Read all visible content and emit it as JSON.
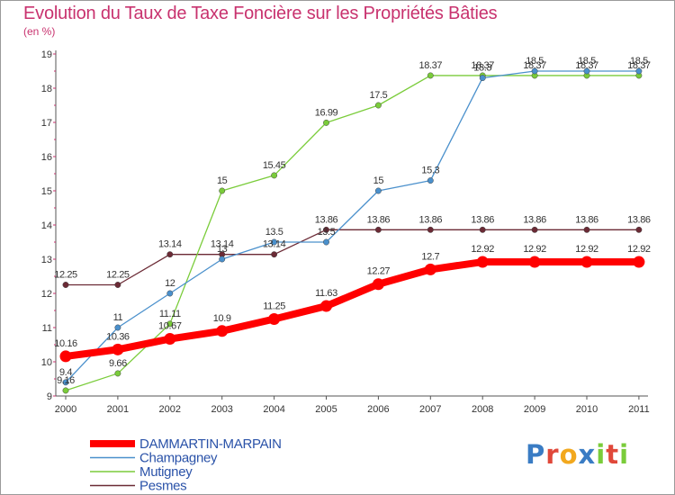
{
  "chart_data": {
    "type": "line",
    "title": "Evolution du Taux de Taxe Foncière sur les Propriétés Bâties",
    "ylabel": "(en %)",
    "xlabel": "",
    "categories": [
      "2000",
      "2001",
      "2002",
      "2003",
      "2004",
      "2005",
      "2006",
      "2007",
      "2008",
      "2009",
      "2010",
      "2011"
    ],
    "ylim": [
      9,
      19
    ],
    "yticks": [
      "9",
      "10",
      "11",
      "12",
      "13",
      "14",
      "15",
      "16",
      "17",
      "18",
      "19"
    ],
    "grid": false,
    "legend_position": "bottom-left",
    "series": [
      {
        "name": "Pesmes",
        "color": "#6b2a35",
        "values": [
          12.25,
          12.25,
          13.14,
          13.14,
          13.14,
          13.86,
          13.86,
          13.86,
          13.86,
          13.86,
          13.86,
          13.86
        ],
        "labels": [
          "12.25",
          "12.25",
          "13.14",
          "13.14",
          "13.14",
          "13.86",
          "13.86",
          "13.86",
          "13.86",
          "13.86",
          "13.86",
          "13.86"
        ]
      },
      {
        "name": "Mutigney",
        "color": "#7acc3a",
        "values": [
          9.16,
          9.66,
          11.11,
          15,
          15.45,
          16.99,
          17.5,
          18.37,
          18.37,
          18.37,
          18.37,
          18.37
        ],
        "labels": [
          "9.16",
          "9.66",
          "11.11",
          "15",
          "15.45",
          "16.99",
          "17.5",
          "18.37",
          "18.37",
          "18.37",
          "18.37",
          "18.37"
        ]
      },
      {
        "name": "Champagney",
        "color": "#4a90cc",
        "values": [
          9.4,
          11,
          12,
          13,
          13.5,
          13.5,
          15,
          15.3,
          18.3,
          18.5,
          18.5,
          18.5
        ],
        "labels": [
          "9.4",
          "11",
          "12",
          "13",
          "13.5",
          "13.5",
          "15",
          "15.3",
          "18.3",
          "18.5",
          "18.5",
          "18.5"
        ]
      },
      {
        "name": "DAMMARTIN-MARPAIN",
        "color": "#ff0000",
        "values": [
          10.16,
          10.36,
          10.67,
          10.9,
          11.25,
          11.63,
          12.27,
          12.7,
          12.92,
          12.92,
          12.92,
          12.92
        ],
        "labels": [
          "10.16",
          "10.36",
          "10.67",
          "10.9",
          "11.25",
          "11.63",
          "12.27",
          "12.7",
          "12.92",
          "12.92",
          "12.92",
          "12.92"
        ]
      }
    ],
    "legend": [
      "DAMMARTIN-MARPAIN",
      "Champagney",
      "Mutigney",
      "Pesmes"
    ],
    "brand": {
      "letters": [
        "P",
        "r",
        "o",
        "x",
        "i",
        "t",
        "i"
      ],
      "colors": [
        "#3a7cc4",
        "#e0483a",
        "#f2a81e",
        "#3a7cc4",
        "#7acc3a",
        "#e0483a",
        "#7acc3a"
      ]
    }
  }
}
